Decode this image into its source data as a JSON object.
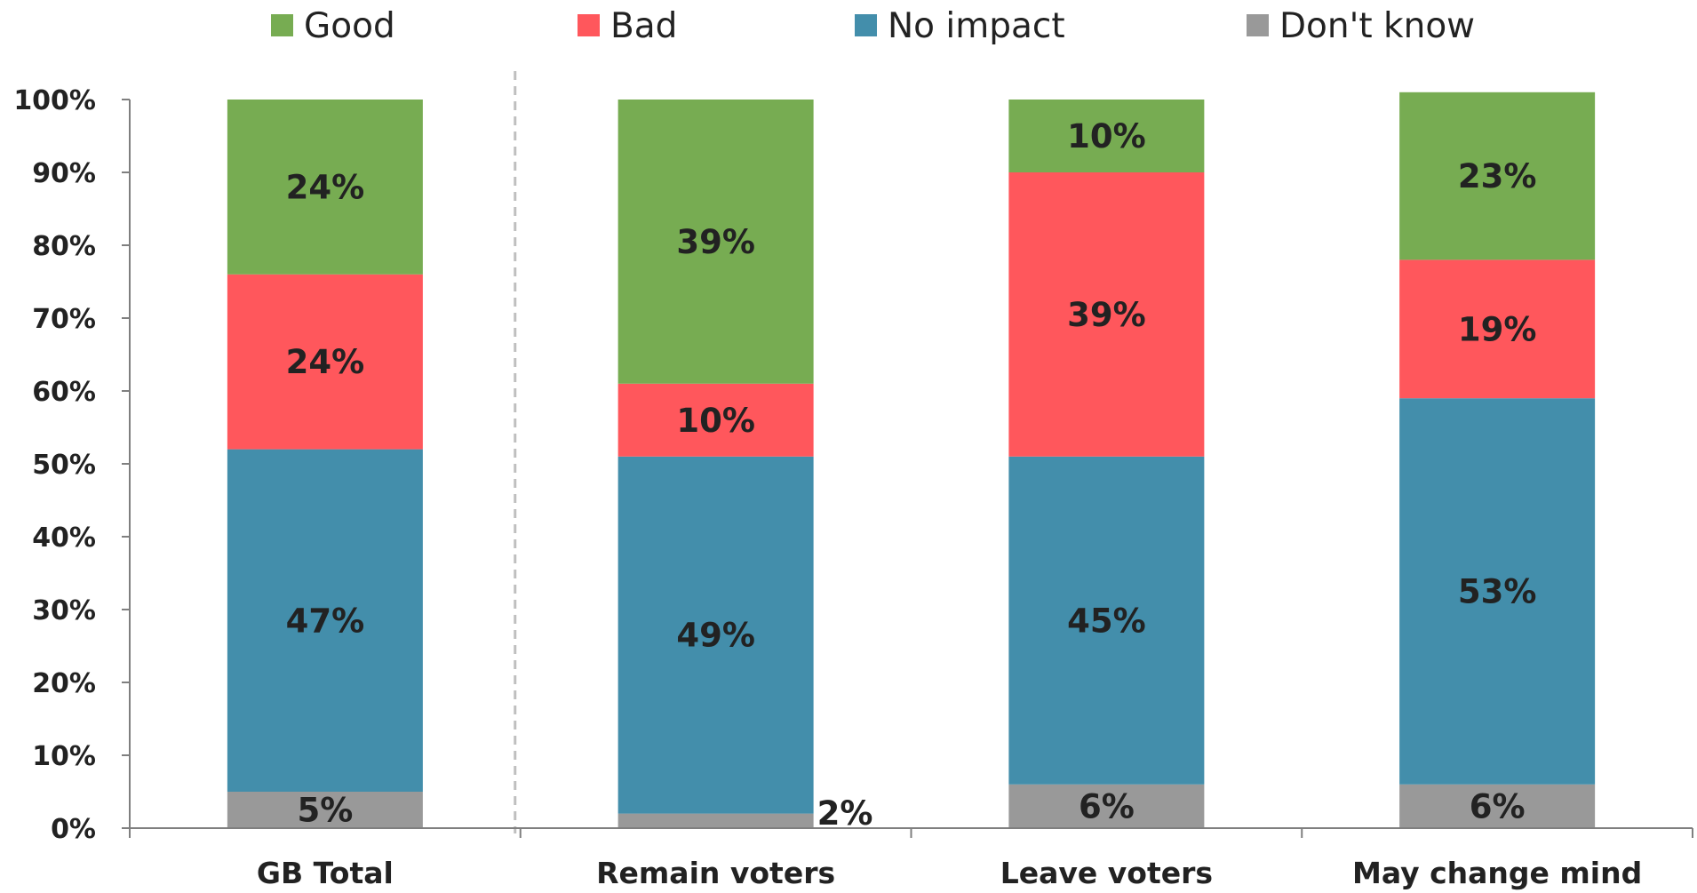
{
  "chart_data": {
    "type": "bar",
    "stacked": true,
    "categories": [
      "GB Total",
      "Remain voters",
      "Leave voters",
      "May change mind"
    ],
    "series": [
      {
        "name": "Don't know",
        "color": "#999999",
        "values": [
          5,
          2,
          6,
          6
        ],
        "labels": [
          "5%",
          "2%",
          "6%",
          "6%"
        ]
      },
      {
        "name": "No impact",
        "color": "#438eab",
        "values": [
          47,
          49,
          45,
          53
        ],
        "labels": [
          "47%",
          "49%",
          "45%",
          "53%"
        ]
      },
      {
        "name": "Bad",
        "color": "#ff575c",
        "values": [
          24,
          10,
          39,
          19
        ],
        "labels": [
          "24%",
          "10%",
          "39%",
          "19%"
        ]
      },
      {
        "name": "Good",
        "color": "#77ac52",
        "values": [
          24,
          39,
          10,
          23
        ],
        "labels": [
          "24%",
          "39%",
          "10%",
          "23%"
        ]
      }
    ],
    "legend_order": [
      "Good",
      "Bad",
      "No impact",
      "Don't know"
    ],
    "y_ticks": [
      "0%",
      "10%",
      "20%",
      "30%",
      "40%",
      "50%",
      "60%",
      "70%",
      "80%",
      "90%",
      "100%"
    ],
    "ylim": [
      0,
      100
    ],
    "legend_position": "top",
    "grid": false,
    "divider_after_category": 0
  }
}
